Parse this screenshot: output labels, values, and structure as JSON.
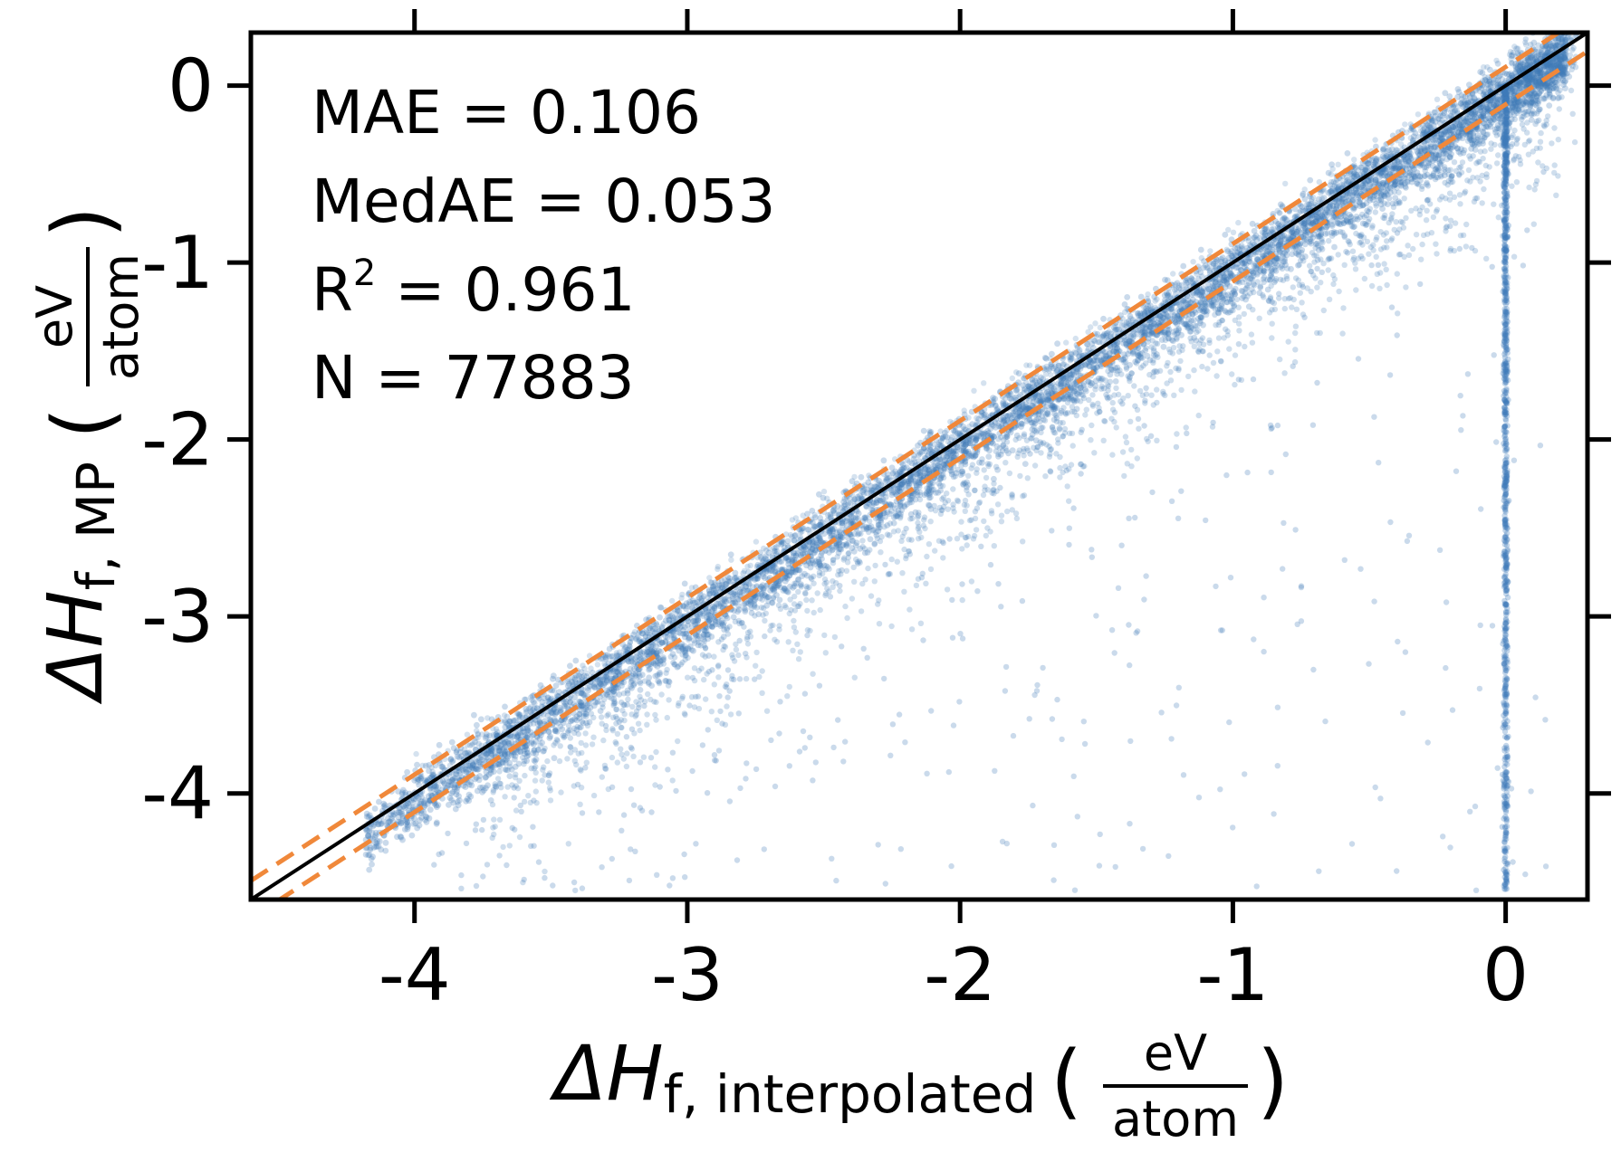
{
  "chart_data": {
    "type": "scatter",
    "xlim": [
      -4.6,
      0.3
    ],
    "ylim": [
      -4.6,
      0.3
    ],
    "x_ticks": [
      -4,
      -3,
      -2,
      -1,
      0
    ],
    "y_ticks": [
      -4,
      -3,
      -2,
      -1,
      0
    ],
    "x_tick_labels": [
      "-4",
      "-3",
      "-2",
      "-1",
      "0"
    ],
    "y_tick_labels": [
      "-4",
      "-3",
      "-2",
      "-1",
      "0"
    ],
    "xlabel": {
      "main": "ΔH",
      "sub": "f, interpolated",
      "unit_num": "eV",
      "unit_den": "atom"
    },
    "ylabel": {
      "main": "ΔH",
      "sub": "f, MP",
      "unit_num": "eV",
      "unit_den": "atom"
    },
    "stats": {
      "mae": "MAE = 0.106",
      "medae": "MedAE = 0.053",
      "r2_prefix": "R",
      "r2_sup": "2",
      "r2_value": " = 0.961",
      "n": "N = 77883"
    },
    "lines": {
      "identity": {
        "slope": 1,
        "intercept": 0,
        "style": "solid"
      },
      "mae_band": {
        "offset": 0.106,
        "style": "dashed"
      }
    },
    "point_cloud": {
      "approx_count_shown": 77883,
      "trend": "y ≈ x, dense band with lower tail; vertical strip at x = 0 spanning y from 0 to -4.5"
    },
    "grid": false,
    "colors": {
      "points": "#3f7ab8",
      "identity": "#000000",
      "mae_band": "#f0883a",
      "mae_text": "#f0883a"
    }
  }
}
